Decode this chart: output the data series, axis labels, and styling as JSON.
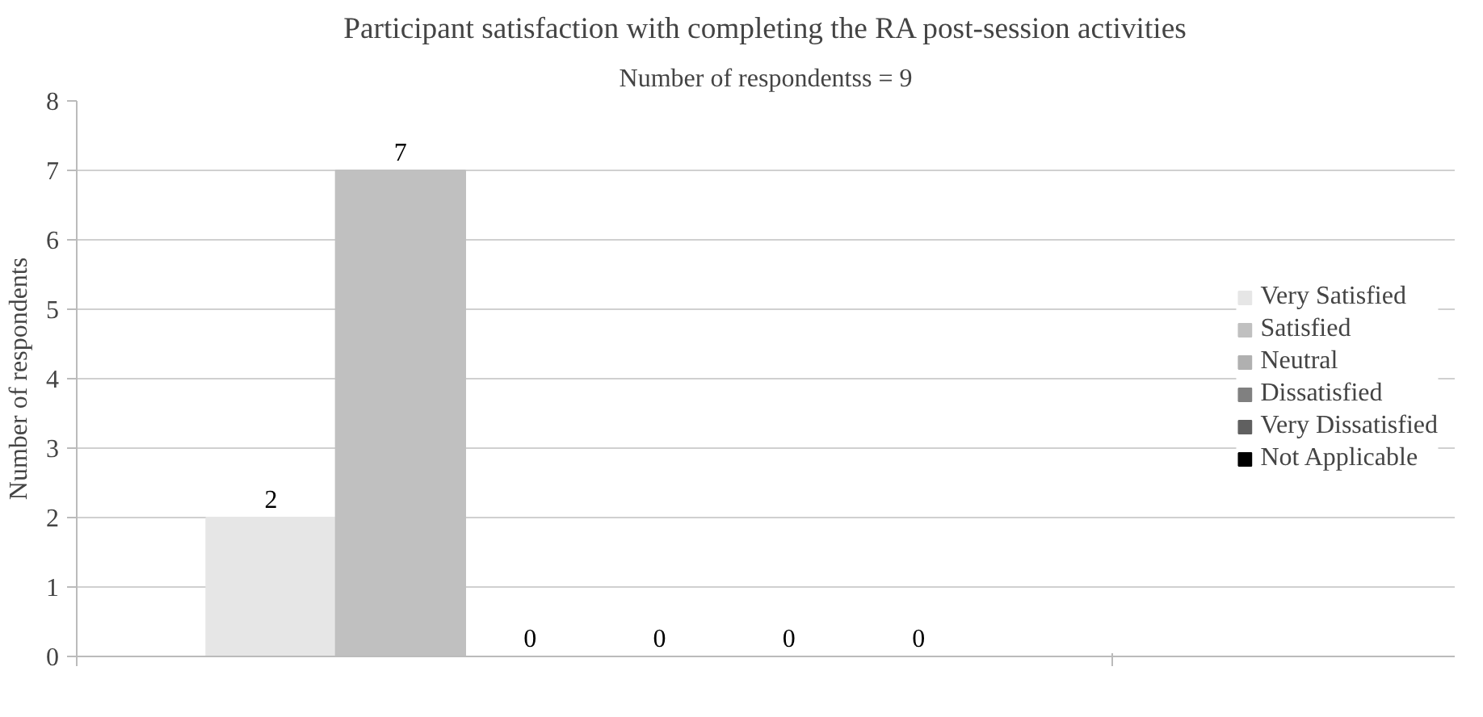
{
  "chart_data": {
    "type": "bar",
    "title": "Participant satisfaction with completing the RA post-session activities",
    "subtitle": "Number of respondentss = 9",
    "ylabel": "Number of respondents",
    "categories": [
      null
    ],
    "series": [
      {
        "name": "Very Satisfied",
        "color": "#e6e6e6",
        "values": [
          2
        ]
      },
      {
        "name": "Satisfied",
        "color": "#c0c0c0",
        "values": [
          7
        ]
      },
      {
        "name": "Neutral",
        "color": "#b0b0b0",
        "values": [
          0
        ]
      },
      {
        "name": "Dissatisfied",
        "color": "#808080",
        "values": [
          0
        ]
      },
      {
        "name": "Very Dissatisfied",
        "color": "#606060",
        "values": [
          0
        ]
      },
      {
        "name": "Not Applicable",
        "color": "#000000",
        "values": [
          0
        ]
      }
    ],
    "ylim": [
      0,
      8
    ],
    "yticks": [
      0,
      1,
      2,
      3,
      4,
      5,
      6,
      7,
      8
    ],
    "grid": "y",
    "legend": "right",
    "data_labels": true
  }
}
